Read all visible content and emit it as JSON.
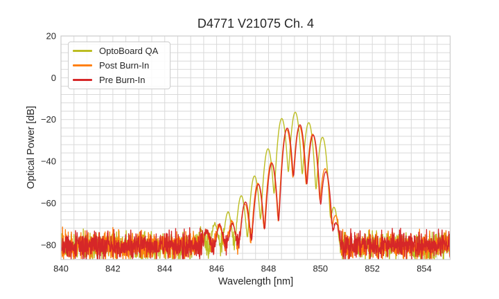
{
  "chart_data": {
    "type": "line",
    "title": "D4771 V21075 Ch. 4",
    "xlabel": "Wavelength [nm]",
    "ylabel": "Optical Power [dB]",
    "xlim": [
      840,
      855
    ],
    "ylim": [
      -87,
      20
    ],
    "xticks": [
      840,
      842,
      844,
      846,
      848,
      850,
      852,
      854
    ],
    "yticks": [
      20,
      0,
      -20,
      -40,
      -60,
      -80
    ],
    "minor_grid_step_x_nm": 0.5,
    "minor_grid_step_y_db": 4,
    "grid": "on",
    "legend_position": "upper left",
    "style": {
      "background": "#ffffff",
      "grid_color": "#d9d9d9",
      "frame_color": "#cccccc",
      "text_color": "#262626"
    },
    "noise_floor": {
      "mean_db": -80.5,
      "amp_db": 5.5,
      "band_top_db": -70,
      "band_bottom_db": -87
    },
    "mode_linewidth_sigma_nm": 0.07,
    "sample_step_nm": 0.01,
    "series": [
      {
        "name": "OptoBoard QA",
        "color": "#bcbd22",
        "noise_seed": 11,
        "mode_peaks_nm_db": [
          [
            845.42,
            -74
          ],
          [
            845.93,
            -70.5
          ],
          [
            846.44,
            -64.5
          ],
          [
            846.95,
            -56.5
          ],
          [
            847.46,
            -47
          ],
          [
            847.98,
            -34
          ],
          [
            848.51,
            -19.5
          ],
          [
            849.03,
            -16.5
          ],
          [
            849.55,
            -21.5
          ],
          [
            850.08,
            -28.5
          ],
          [
            850.52,
            -62
          ]
        ]
      },
      {
        "name": "Post Burn-In",
        "color": "#ff7f0e",
        "noise_seed": 22,
        "mode_peaks_nm_db": [
          [
            845.6,
            -75
          ],
          [
            846.1,
            -71.5
          ],
          [
            846.59,
            -69
          ],
          [
            847.09,
            -60.5
          ],
          [
            847.59,
            -50.5
          ],
          [
            848.11,
            -40.5
          ],
          [
            848.7,
            -24.8
          ],
          [
            849.19,
            -23.2
          ],
          [
            849.7,
            -27
          ],
          [
            850.18,
            -43.5
          ],
          [
            850.58,
            -66
          ]
        ]
      },
      {
        "name": "Pre Burn-In",
        "color": "#d62728",
        "noise_seed": 33,
        "mode_peaks_nm_db": [
          [
            845.62,
            -74.5
          ],
          [
            846.12,
            -71
          ],
          [
            846.61,
            -70.5
          ],
          [
            847.11,
            -59.5
          ],
          [
            847.61,
            -51
          ],
          [
            848.13,
            -41
          ],
          [
            848.72,
            -24.1
          ],
          [
            849.21,
            -22.5
          ],
          [
            849.72,
            -27.4
          ],
          [
            850.21,
            -45
          ],
          [
            850.6,
            -70
          ]
        ]
      }
    ]
  }
}
